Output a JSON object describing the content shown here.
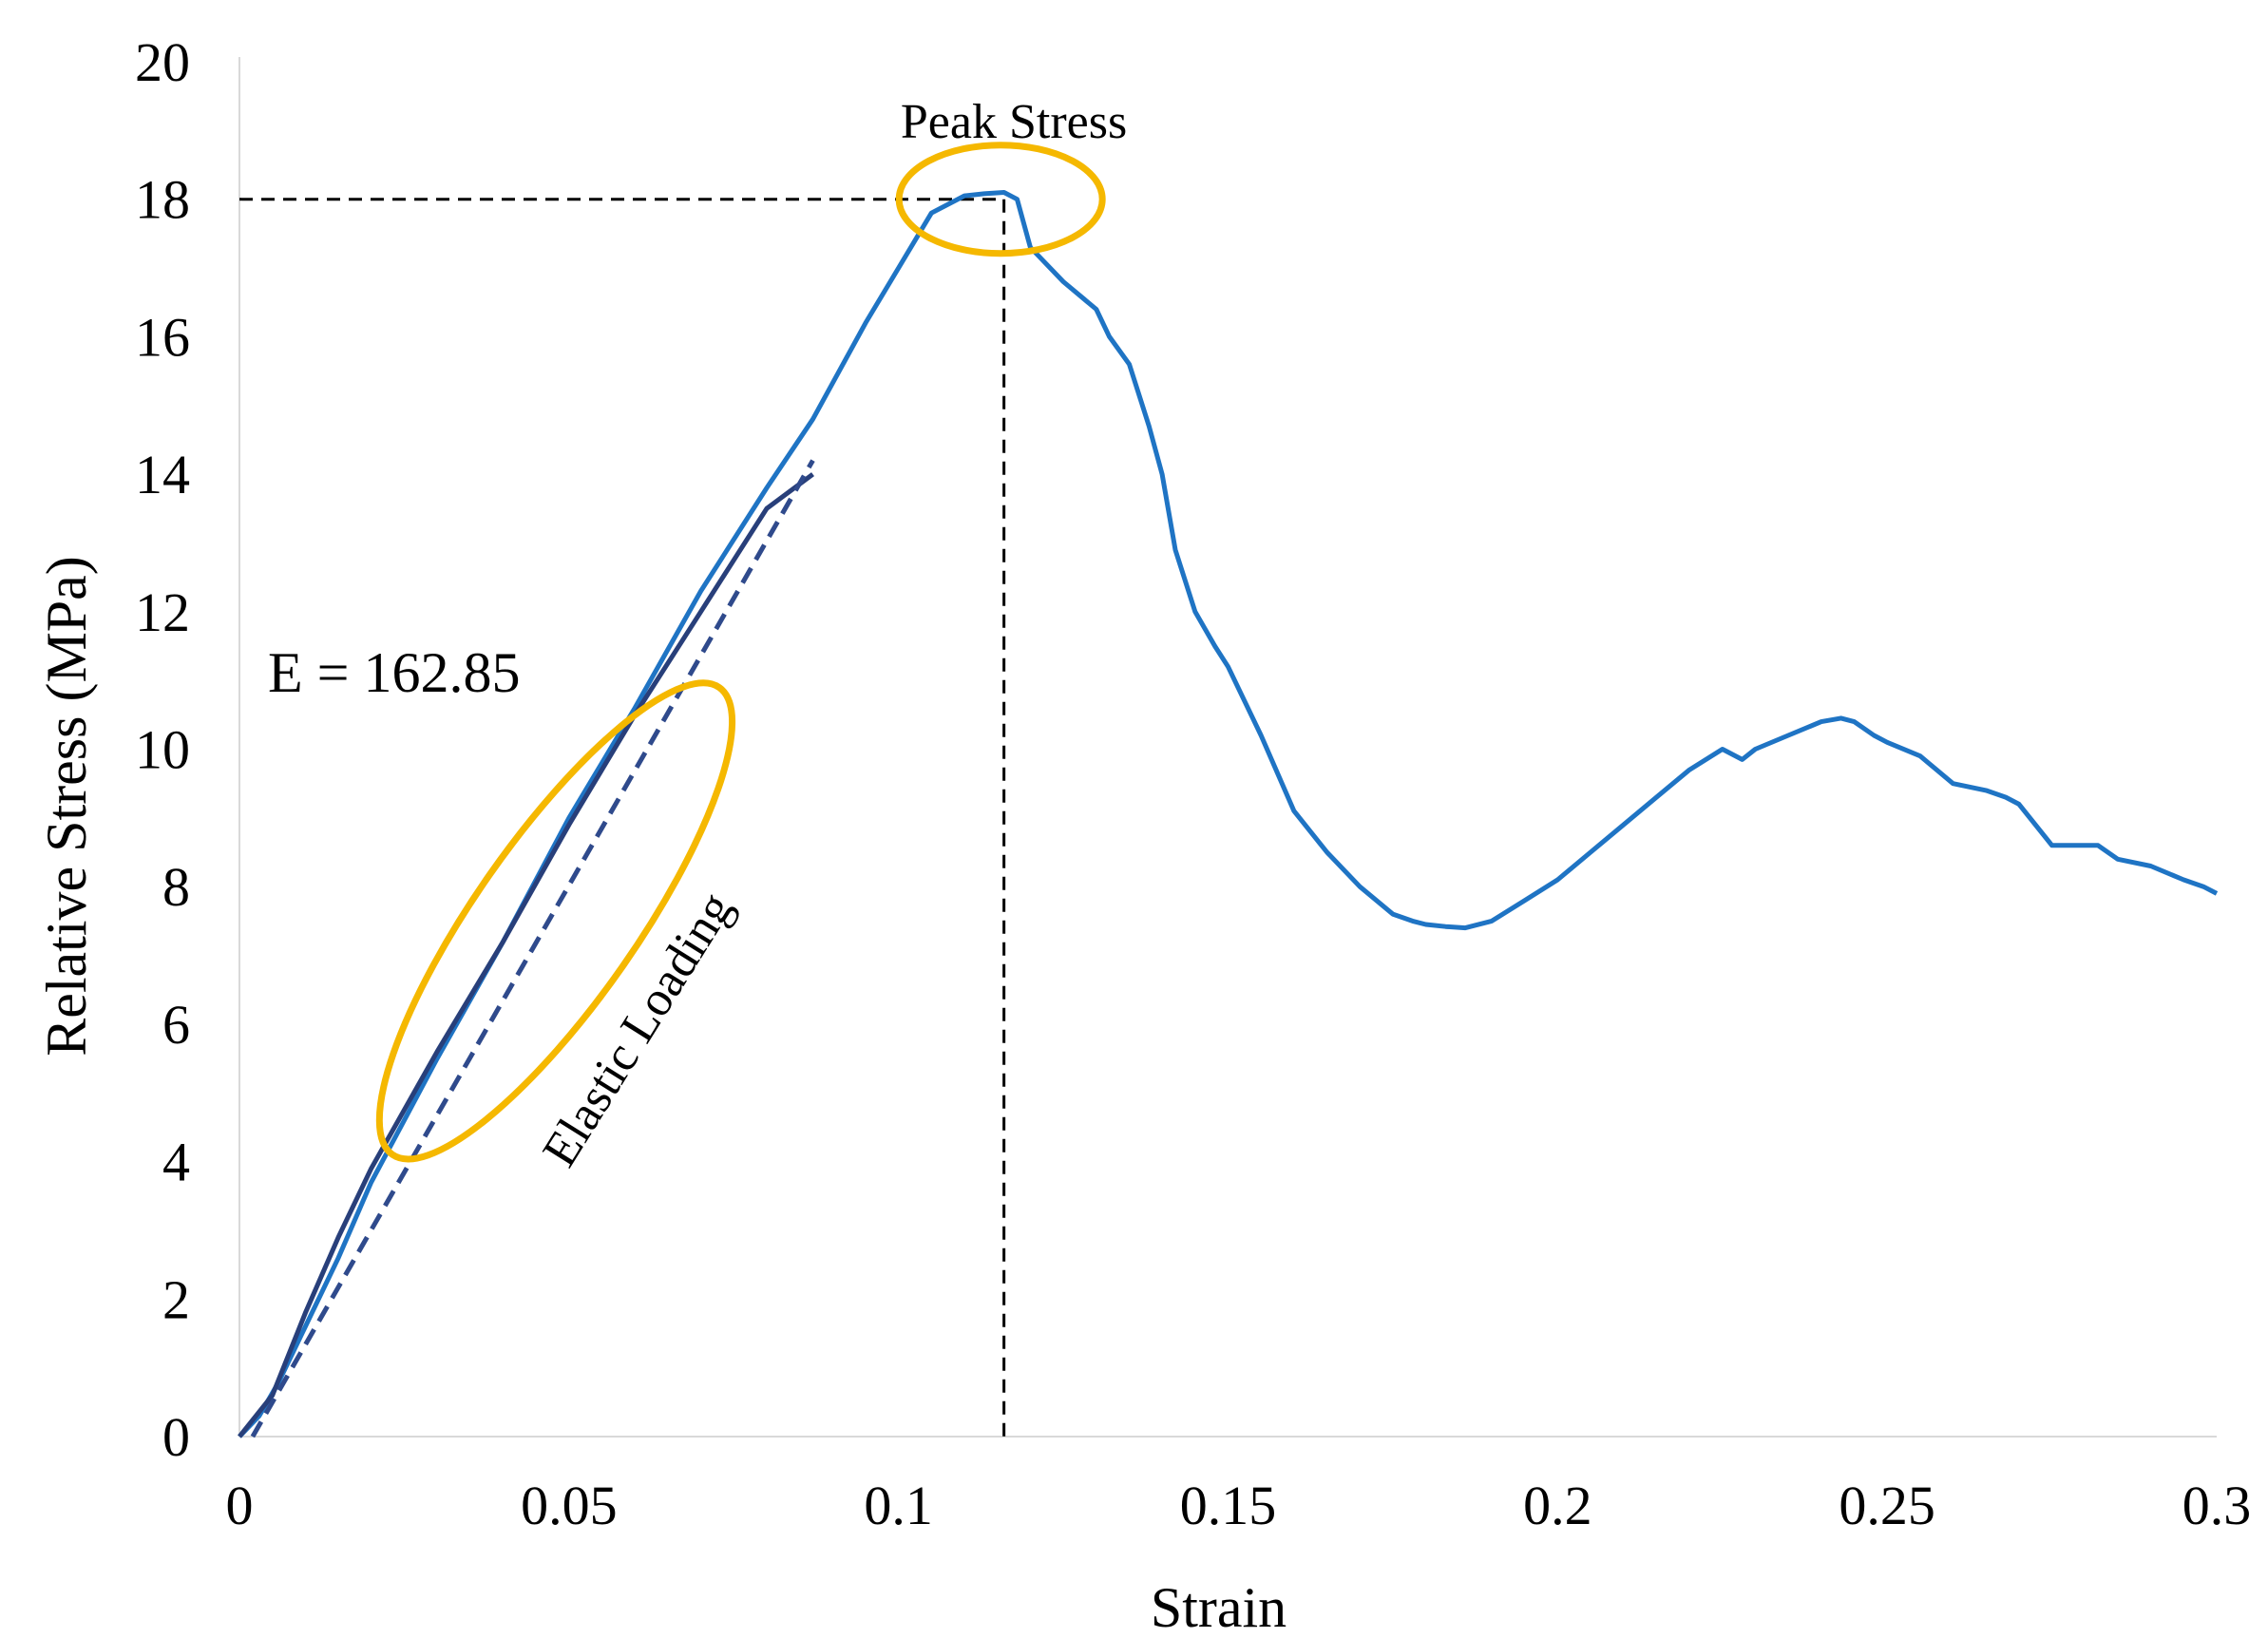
{
  "chart_data": {
    "type": "line",
    "xlabel": "Strain",
    "ylabel": "Relative Stress (MPa)",
    "xlim": [
      0,
      0.3
    ],
    "ylim": [
      0,
      20
    ],
    "xticks": [
      0,
      0.05,
      0.1,
      0.15,
      0.2,
      0.25,
      0.3
    ],
    "xtick_labels": [
      "0",
      "0.05",
      "0.1",
      "0.15",
      "0.2",
      "0.25",
      "0.3"
    ],
    "yticks": [
      0,
      2,
      4,
      6,
      8,
      10,
      12,
      14,
      16,
      18,
      20
    ],
    "ytick_labels": [
      "0",
      "2",
      "4",
      "6",
      "8",
      "10",
      "12",
      "14",
      "16",
      "18",
      "20"
    ],
    "grid": false,
    "legend": "none",
    "colors": {
      "stress_curve": "#1f74c4",
      "elastic_segment": "#283f7a",
      "fit_line": "#2f4a8c",
      "highlight": "#f5b800",
      "guide": "#000000"
    },
    "series": [
      {
        "role": "stress-strain-curve",
        "x": [
          0,
          0.003,
          0.006,
          0.01,
          0.015,
          0.02,
          0.03,
          0.04,
          0.05,
          0.06,
          0.07,
          0.08,
          0.087,
          0.095,
          0.1,
          0.105,
          0.11,
          0.113,
          0.116,
          0.118,
          0.12,
          0.122,
          0.125,
          0.13,
          0.132,
          0.135,
          0.138,
          0.14,
          0.142,
          0.145,
          0.148,
          0.15,
          0.155,
          0.16,
          0.165,
          0.17,
          0.175,
          0.178,
          0.18,
          0.183,
          0.186,
          0.19,
          0.195,
          0.2,
          0.205,
          0.21,
          0.215,
          0.22,
          0.225,
          0.228,
          0.23,
          0.235,
          0.24,
          0.243,
          0.245,
          0.248,
          0.25,
          0.255,
          0.26,
          0.265,
          0.268,
          0.27,
          0.275,
          0.28,
          0.282,
          0.285,
          0.29,
          0.295,
          0.298,
          0.3
        ],
        "y": [
          0,
          0.3,
          0.8,
          1.6,
          2.6,
          3.7,
          5.5,
          7.2,
          9.0,
          10.6,
          12.3,
          13.8,
          14.8,
          16.2,
          17.0,
          17.8,
          18.05,
          18.08,
          18.1,
          18.0,
          17.3,
          17.1,
          16.8,
          16.4,
          16.0,
          15.6,
          14.7,
          14.0,
          12.9,
          12.0,
          11.5,
          11.2,
          10.2,
          9.1,
          8.5,
          8.0,
          7.6,
          7.5,
          7.45,
          7.42,
          7.4,
          7.5,
          7.8,
          8.1,
          8.5,
          8.9,
          9.3,
          9.7,
          10.0,
          9.85,
          10.0,
          10.2,
          10.4,
          10.45,
          10.4,
          10.2,
          10.1,
          9.9,
          9.5,
          9.4,
          9.3,
          9.2,
          8.6,
          8.6,
          8.6,
          8.4,
          8.3,
          8.1,
          8.0,
          7.9
        ]
      },
      {
        "role": "elastic-loading-segment",
        "x": [
          0,
          0.005,
          0.01,
          0.015,
          0.02,
          0.03,
          0.04,
          0.05,
          0.06,
          0.07,
          0.08,
          0.087
        ],
        "y": [
          0,
          0.6,
          1.8,
          2.9,
          3.9,
          5.6,
          7.2,
          8.9,
          10.5,
          12.0,
          13.5,
          14.0
        ]
      },
      {
        "role": "linear-fit",
        "style": "dashed",
        "x": [
          0.002,
          0.087
        ],
        "y": [
          0,
          14.2
        ]
      }
    ],
    "peak": {
      "x": 0.116,
      "y": 18.1
    },
    "annotations": {
      "peak_label": "Peak Stress",
      "elastic_label": "Elastic Loading",
      "modulus_label": "E = 162.85"
    }
  }
}
